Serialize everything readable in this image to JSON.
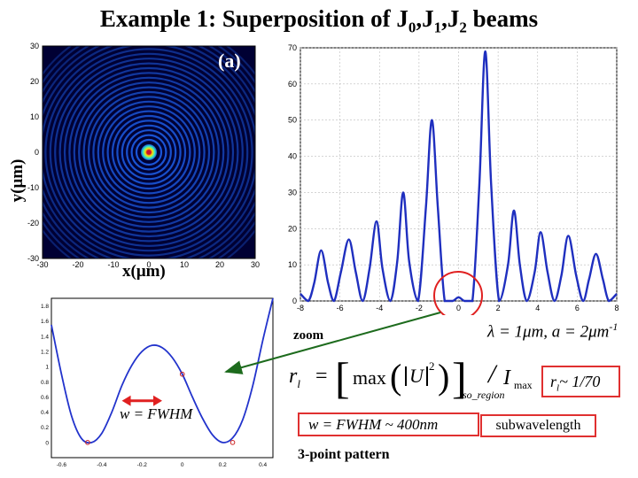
{
  "title": {
    "prefix": "Example 1: Superposition of J",
    "sub0": "0",
    "sep1": ",J",
    "sub1": "1",
    "sep2": ",J",
    "sub2": "2",
    "suffix": " beams"
  },
  "panel_a": {
    "label": "(a)",
    "xlabel": "x(μm)",
    "ylabel": "y(μm)",
    "xticks": [
      "-30",
      "-20",
      "-10",
      "0",
      "10",
      "20",
      "30"
    ],
    "yticks": [
      "30",
      "20",
      "10",
      "0",
      "-10",
      "-20",
      "-30"
    ],
    "colors": {
      "background": "#000033",
      "ring": "#1a55d8",
      "core_inner": "#ffe000",
      "core_outer": "#2fe7c8",
      "center": "#c8102e"
    }
  },
  "annotations": {
    "zoom": "zoom",
    "lambda_eq": "λ = 1μm, a = 2μm",
    "lambda_sup": "-1",
    "rl_lhs": "r",
    "rl_sub": "l",
    "rl_max": "max",
    "rl_U": "U",
    "rl_pow": "2",
    "rl_region": "so_region",
    "rl_I": "I",
    "rl_Imax": "max",
    "rl_approx": "~ 1/70",
    "fwhm_box": "w = FWHM ~ 400nm",
    "fwhm_label": "w = FWHM",
    "subwavelength": "subwavelength",
    "three_point": "3-point pattern"
  },
  "chart_data": [
    {
      "type": "line",
      "title": "",
      "xlabel": "",
      "ylabel": "",
      "xlim": [
        -8,
        8
      ],
      "ylim": [
        0,
        70
      ],
      "xticks": [
        -8,
        -6,
        -4,
        -2,
        0,
        2,
        4,
        6,
        8
      ],
      "yticks": [
        0,
        10,
        20,
        30,
        40,
        50,
        60,
        70
      ],
      "grid": true,
      "color": "#1f2fbf",
      "x": [
        -8.0,
        -7.6,
        -7.3,
        -6.95,
        -6.6,
        -6.3,
        -5.95,
        -5.55,
        -5.2,
        -4.85,
        -4.5,
        -4.15,
        -3.85,
        -3.45,
        -3.1,
        -2.8,
        -2.5,
        -2.05,
        -1.65,
        -1.35,
        -1.05,
        -0.7,
        -0.3,
        0.0,
        0.3,
        0.7,
        1.05,
        1.35,
        1.65,
        2.05,
        2.5,
        2.8,
        3.1,
        3.45,
        3.85,
        4.15,
        4.5,
        4.85,
        5.2,
        5.55,
        5.95,
        6.3,
        6.6,
        6.95,
        7.3,
        7.6,
        8.0
      ],
      "y": [
        2,
        0,
        5,
        14,
        5,
        0,
        8,
        17,
        8,
        0,
        9,
        22,
        9,
        0,
        11,
        30,
        11,
        0,
        26,
        50,
        26,
        0,
        0,
        1,
        0,
        0,
        32,
        69,
        32,
        0,
        10,
        25,
        10,
        0,
        8,
        19,
        8,
        0,
        7,
        18,
        7,
        0,
        6,
        13,
        6,
        0,
        2
      ]
    },
    {
      "type": "line",
      "title": "",
      "xlabel": "",
      "ylabel": "",
      "xlim": [
        -0.65,
        0.45
      ],
      "ylim": [
        -0.2,
        1.9
      ],
      "xticks": [
        -0.6,
        -0.4,
        -0.2,
        0,
        0.2,
        0.4
      ],
      "xtick_labels": [
        "-0.6",
        "-0.4",
        "-0.2",
        "0",
        "0.2",
        "0.4"
      ],
      "yticks": [
        0,
        0.2,
        0.4,
        0.6,
        0.8,
        1,
        1.2,
        1.4,
        1.6,
        1.8
      ],
      "ytick_labels": [
        "0",
        "0.2",
        "0.4",
        "0.6",
        "0.8",
        "1",
        "1.2",
        "1.4",
        "1.6",
        "1.8"
      ],
      "grid": false,
      "color": "#2233cc",
      "x": [
        -0.65,
        -0.6,
        -0.55,
        -0.5,
        -0.45,
        -0.4,
        -0.35,
        -0.3,
        -0.25,
        -0.2,
        -0.15,
        -0.1,
        -0.05,
        0.0,
        0.05,
        0.1,
        0.15,
        0.2,
        0.25,
        0.3,
        0.35,
        0.4,
        0.45
      ],
      "y": [
        1.55,
        0.9,
        0.35,
        0.05,
        0.0,
        0.12,
        0.4,
        0.75,
        1.02,
        1.2,
        1.28,
        1.25,
        1.12,
        0.9,
        0.6,
        0.32,
        0.1,
        0.0,
        0.06,
        0.3,
        0.75,
        1.35,
        1.9
      ],
      "markers": [
        {
          "x": -0.47,
          "y": 0.0
        },
        {
          "x": 0.0,
          "y": 0.9
        },
        {
          "x": 0.25,
          "y": 0.0
        }
      ],
      "fwhm_arrow": [
        -0.3,
        -0.1,
        0.55
      ]
    }
  ]
}
